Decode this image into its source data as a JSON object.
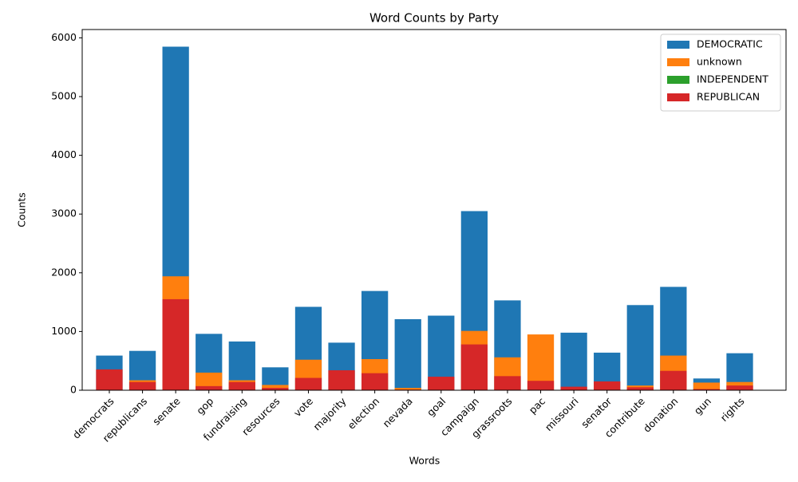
{
  "chart_data": {
    "type": "bar",
    "title": "Word Counts by Party",
    "x_label": "Words",
    "y_label": "Counts",
    "categories": [
      "democrats",
      "republicans",
      "senate",
      "gop",
      "fundraising",
      "resources",
      "vote",
      "majority",
      "election",
      "nevada",
      "goal",
      "campaign",
      "grassroots",
      "pac",
      "missouri",
      "senator",
      "contribute",
      "donation",
      "gun",
      "rights"
    ],
    "series": [
      {
        "name": "DEMOCRATIC",
        "color": "#1f77b4",
        "values": [
          590,
          670,
          5850,
          960,
          830,
          390,
          1420,
          810,
          1690,
          1210,
          1270,
          3050,
          1530,
          0,
          980,
          640,
          1450,
          1760,
          200,
          630
        ]
      },
      {
        "name": "unknown",
        "color": "#ff7f0e",
        "values": [
          0,
          170,
          1940,
          300,
          170,
          90,
          520,
          0,
          530,
          40,
          0,
          1010,
          560,
          950,
          0,
          0,
          80,
          590,
          130,
          140
        ]
      },
      {
        "name": "INDEPENDENT",
        "color": "#2ca02c",
        "values": [
          0,
          0,
          0,
          0,
          0,
          0,
          0,
          0,
          0,
          0,
          0,
          0,
          0,
          0,
          0,
          0,
          0,
          0,
          0,
          0
        ]
      },
      {
        "name": "REPUBLICAN",
        "color": "#d62728",
        "values": [
          355,
          140,
          1550,
          70,
          140,
          40,
          210,
          340,
          290,
          10,
          230,
          780,
          240,
          160,
          60,
          150,
          50,
          330,
          20,
          80
        ]
      }
    ],
    "ylim": [
      0,
      6142
    ],
    "yticks": [
      0,
      1000,
      2000,
      3000,
      4000,
      5000,
      6000
    ],
    "legend": "upper right"
  }
}
